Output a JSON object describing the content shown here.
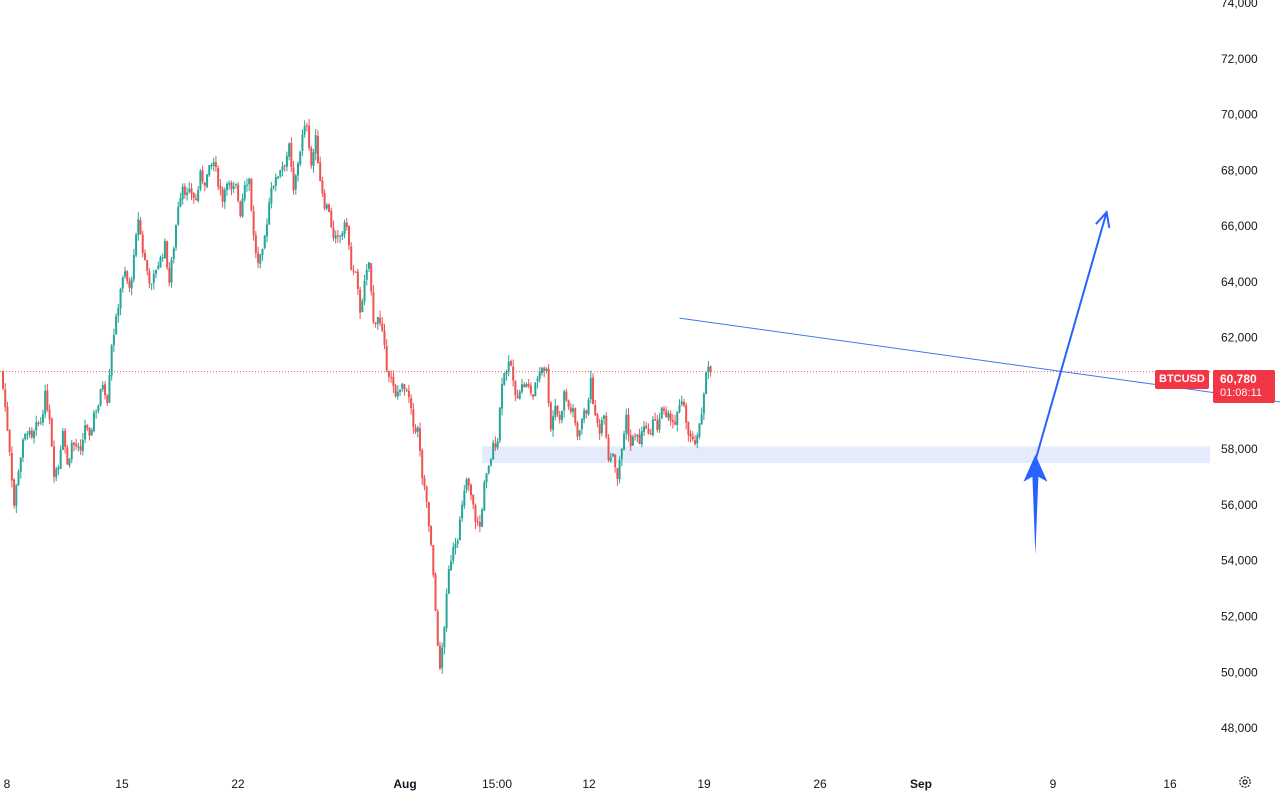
{
  "chart_data": {
    "type": "candlestick",
    "symbol": "BTCUSD",
    "current_price": 60780,
    "current_price_label": "60,780",
    "countdown": "01:08:11",
    "ylim": [
      47500,
      74000
    ],
    "y_ticks": [
      "74,000",
      "72,000",
      "70,000",
      "68,000",
      "66,000",
      "64,000",
      "62,000",
      "60,000",
      "58,000",
      "56,000",
      "54,000",
      "52,000",
      "50,000",
      "48,000"
    ],
    "x_labels": [
      {
        "label": "8",
        "bold": false
      },
      {
        "label": "15",
        "bold": false
      },
      {
        "label": "22",
        "bold": false
      },
      {
        "label": "Aug",
        "bold": true
      },
      {
        "label": "15:00",
        "bold": false
      },
      {
        "label": "12",
        "bold": false
      },
      {
        "label": "19",
        "bold": false
      },
      {
        "label": "26",
        "bold": false
      },
      {
        "label": "Sep",
        "bold": true
      },
      {
        "label": "9",
        "bold": false
      },
      {
        "label": "16",
        "bold": false
      }
    ],
    "price_path": [
      60800,
      59500,
      58000,
      56000,
      57300,
      58200,
      58700,
      58300,
      58800,
      59000,
      59900,
      59200,
      57200,
      57400,
      58800,
      57400,
      58200,
      58100,
      57800,
      58900,
      58300,
      59300,
      59600,
      60400,
      59800,
      61800,
      62600,
      63800,
      64300,
      63700,
      64800,
      66300,
      65100,
      64400,
      63800,
      64500,
      64800,
      65300,
      64000,
      65300,
      66800,
      67500,
      67100,
      67200,
      66900,
      67800,
      67600,
      68000,
      68300,
      67600,
      67000,
      67700,
      67200,
      67400,
      66500,
      67600,
      67700,
      65600,
      64600,
      65000,
      66200,
      67500,
      67600,
      68100,
      68300,
      68800,
      67200,
      68300,
      69200,
      69700,
      68200,
      69100,
      67700,
      66800,
      66600,
      65500,
      65500,
      65800,
      66100,
      64400,
      64200,
      63000,
      63900,
      64700,
      62500,
      62800,
      62100,
      61000,
      60500,
      59800,
      60300,
      60100,
      59800,
      58800,
      58700,
      57000,
      56000,
      54500,
      52200,
      50000,
      51700,
      53600,
      54600,
      54900,
      55900,
      56900,
      56300,
      55500,
      55200,
      56700,
      57300,
      58100,
      58400,
      60500,
      60900,
      61000,
      59800,
      60200,
      60300,
      60200,
      59900,
      60600,
      61000,
      60800,
      58800,
      59600,
      59000,
      60000,
      59500,
      59300,
      58500,
      59100,
      59400,
      60400,
      59100,
      58700,
      59400,
      57700,
      57900,
      57000,
      58000,
      59200,
      58100,
      58600,
      58200,
      58900,
      58400,
      59000,
      58800,
      59500,
      59000,
      59200,
      58900,
      59500,
      59600,
      58500,
      58200,
      58300,
      59300,
      60900
    ],
    "annotations": {
      "trendline": {
        "from": {
          "index": 152,
          "price": 62700
        },
        "to": {
          "index": 289,
          "price": 59650
        }
      },
      "support_zone": {
        "low": 57500,
        "high": 58100
      },
      "arrow_up_from_zone": {
        "from": {
          "index": 232,
          "price": 57600
        },
        "to": {
          "index": 248,
          "price": 66500
        }
      },
      "arrow_up_vertical": {
        "from": {
          "index": 232,
          "price": 54200
        },
        "to": {
          "index": 232,
          "price": 57800
        }
      }
    },
    "grid": false,
    "colors": {
      "up": "#26a69a",
      "down": "#ef5350",
      "price_line": "#f23645",
      "trend_line": "#3f78ef",
      "annotation_arrow": "#2962ff",
      "zone": "#e3ebfd",
      "symbol_tag": "#f23645",
      "text": "#131722"
    }
  }
}
